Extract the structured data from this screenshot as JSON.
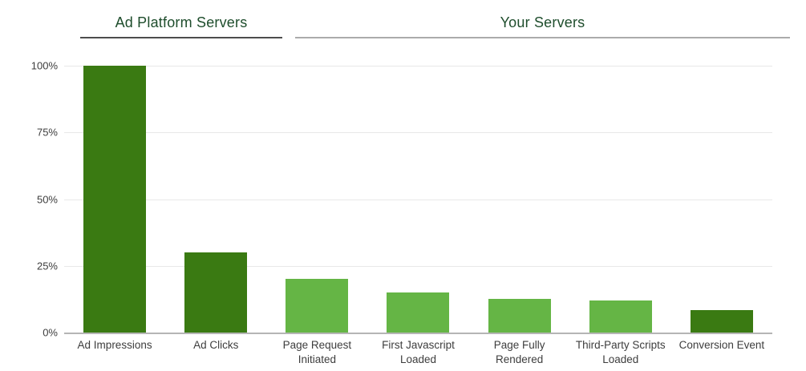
{
  "chart_data": {
    "type": "bar",
    "group_headers": [
      {
        "label": "Ad Platform Servers",
        "covers": [
          "Ad Impressions",
          "Ad Clicks"
        ]
      },
      {
        "label": "Your Servers",
        "covers": [
          "Page Request Initiated",
          "First Javascript Loaded",
          "Page Fully Rendered",
          "Third-Party Scripts Loaded",
          "Conversion Event"
        ]
      }
    ],
    "categories": [
      "Ad Impressions",
      "Ad Clicks",
      "Page Request Initiated",
      "First Javascript Loaded",
      "Page Fully Rendered",
      "Third-Party Scripts Loaded",
      "Conversion Event"
    ],
    "values": [
      100,
      30,
      20,
      15,
      12.5,
      12,
      8.5
    ],
    "bar_colors": [
      "#3a7a12",
      "#3a7a12",
      "#65b545",
      "#65b545",
      "#65b545",
      "#65b545",
      "#3a7a12"
    ],
    "y_ticks": [
      {
        "value": 0,
        "label": "0%"
      },
      {
        "value": 25,
        "label": "25%"
      },
      {
        "value": 50,
        "label": "50%"
      },
      {
        "value": 75,
        "label": "75%"
      },
      {
        "value": 100,
        "label": "100%"
      }
    ],
    "ylim": [
      0,
      100
    ],
    "grid": true,
    "legend": null,
    "xlabel": "",
    "ylabel": ""
  },
  "colors": {
    "bar_dark_green": "#3a7a12",
    "bar_light_green": "#65b545",
    "header_text_green": "#1e4d2c",
    "header_underline_dark": "#4d4d4d",
    "header_underline_light": "#ababab",
    "gridline": "#e8e8e8",
    "axis_baseline": "#b5b5b5",
    "axis_text": "#3d3d3d",
    "background": "#ffffff"
  }
}
